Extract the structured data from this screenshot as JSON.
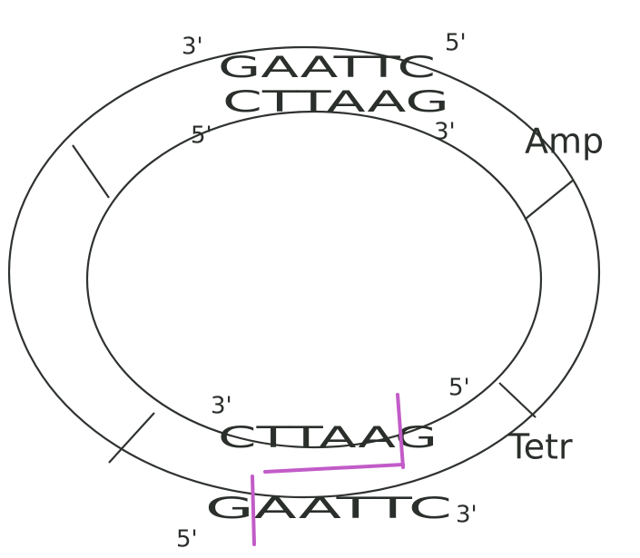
{
  "labels": {
    "amp": "Amp",
    "tetr": "Tetr"
  },
  "top_site": {
    "outer": {
      "left": "3'",
      "sequence": "GAATTC",
      "right": "5'"
    },
    "inner": {
      "left": "5'",
      "sequence": "CTTAAG",
      "right": "3'"
    }
  },
  "bottom_site": {
    "inner": {
      "left": "3'",
      "sequence": "CTTAAG",
      "right": "5'"
    },
    "outer": {
      "left": "5'",
      "sequence": "GAATTC",
      "right": "3'"
    }
  }
}
